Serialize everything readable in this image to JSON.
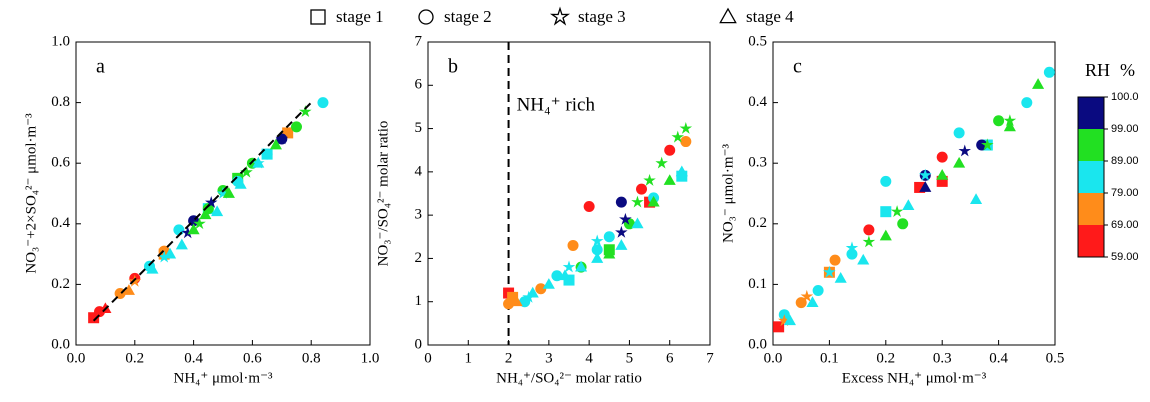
{
  "chart_data": [
    {
      "type": "scatter",
      "panel": "a",
      "xlabel": "NH₄⁺ μmol·m⁻³",
      "ylabel": "NO₃⁻+2×SO₄²⁻ μmol·m⁻³",
      "xlim": [
        0,
        1
      ],
      "ylim": [
        0,
        1
      ],
      "xticks": [
        {
          "value": 0,
          "label": "0.0"
        },
        0.2,
        0.4,
        0.6,
        0.8,
        {
          "value": 1,
          "label": "1.0"
        }
      ],
      "yticks": [
        {
          "value": 0,
          "label": "0.0"
        },
        0.2,
        0.4,
        0.6,
        0.8,
        {
          "value": 1,
          "label": "1.0"
        }
      ],
      "line_x": [
        0.06,
        0.8
      ],
      "line_y": [
        0.08,
        0.8
      ],
      "series": [
        {
          "name": "stage 1",
          "marker": "square",
          "x": [
            0.06,
            0.3,
            0.45,
            0.55,
            0.65,
            0.72
          ],
          "values": [
            0.09,
            0.3,
            0.45,
            0.55,
            0.63,
            0.7
          ],
          "rh": [
            62,
            70,
            82,
            92,
            85,
            75
          ]
        },
        {
          "name": "stage 2",
          "marker": "circle",
          "x": [
            0.08,
            0.15,
            0.2,
            0.25,
            0.3,
            0.35,
            0.4,
            0.45,
            0.5,
            0.55,
            0.6,
            0.65,
            0.7,
            0.75,
            0.84
          ],
          "values": [
            0.11,
            0.17,
            0.22,
            0.26,
            0.31,
            0.38,
            0.41,
            0.45,
            0.51,
            0.54,
            0.6,
            0.63,
            0.68,
            0.72,
            0.8
          ],
          "rh": [
            60,
            72,
            65,
            80,
            75,
            85,
            99.5,
            92,
            95,
            82,
            90,
            85,
            99.5,
            92,
            82
          ]
        },
        {
          "name": "stage 3",
          "marker": "star",
          "x": [
            0.2,
            0.3,
            0.38,
            0.42,
            0.46,
            0.5,
            0.58,
            0.62,
            0.7,
            0.78
          ],
          "values": [
            0.21,
            0.29,
            0.37,
            0.4,
            0.47,
            0.5,
            0.57,
            0.6,
            0.68,
            0.77
          ],
          "rh": [
            70,
            82,
            99.5,
            92,
            99.5,
            85,
            92,
            82,
            99.5,
            92
          ]
        },
        {
          "name": "stage 4",
          "marker": "triangle",
          "x": [
            0.1,
            0.18,
            0.26,
            0.32,
            0.36,
            0.4,
            0.44,
            0.48,
            0.52,
            0.56,
            0.62,
            0.68
          ],
          "values": [
            0.12,
            0.18,
            0.25,
            0.3,
            0.33,
            0.38,
            0.43,
            0.44,
            0.5,
            0.53,
            0.6,
            0.66
          ],
          "rh": [
            62,
            72,
            82,
            85,
            82,
            92,
            92,
            85,
            92,
            82,
            82,
            92
          ]
        }
      ]
    },
    {
      "type": "scatter",
      "panel": "b",
      "xlabel": "NH₄⁺/SO₄²⁻ molar ratio",
      "ylabel": "NO₃⁻/SO₄²⁻ molar ratio",
      "annotation": "NH₄⁺ rich",
      "vline": 2,
      "xlim": [
        0,
        7
      ],
      "ylim": [
        0,
        7
      ],
      "xticks": [
        0,
        1,
        2,
        3,
        4,
        5,
        6,
        7
      ],
      "yticks": [
        0,
        1,
        2,
        3,
        4,
        5,
        6,
        7
      ],
      "series": [
        {
          "name": "stage 1",
          "marker": "square",
          "x": [
            2,
            2.1,
            3.5,
            4.5,
            5.5,
            6.3
          ],
          "values": [
            1.2,
            1.1,
            1.5,
            2.2,
            3.3,
            3.9
          ],
          "rh": [
            62,
            70,
            82,
            92,
            62,
            82
          ]
        },
        {
          "name": "stage 2",
          "marker": "circle",
          "x": [
            2,
            2.4,
            2.8,
            3.2,
            3.6,
            3.8,
            4,
            4.2,
            4.5,
            4.8,
            5,
            5.3,
            5.6,
            6,
            6.4
          ],
          "values": [
            0.95,
            1,
            1.3,
            1.6,
            2.3,
            1.8,
            3.2,
            2.2,
            2.5,
            3.3,
            2.8,
            3.6,
            3.4,
            4.5,
            4.7
          ],
          "rh": [
            72,
            82,
            75,
            85,
            70,
            92,
            62,
            85,
            82,
            99.5,
            92,
            62,
            82,
            62,
            75
          ]
        },
        {
          "name": "stage 3",
          "marker": "star",
          "x": [
            2.5,
            3.5,
            4.2,
            4.8,
            4.9,
            5.2,
            5.5,
            5.8,
            6.2,
            6.4
          ],
          "values": [
            1.1,
            1.8,
            2.4,
            2.6,
            2.9,
            3.3,
            3.8,
            4.2,
            4.8,
            5
          ],
          "rh": [
            82,
            85,
            82,
            99.5,
            99.5,
            92,
            92,
            92,
            92,
            92
          ]
        },
        {
          "name": "stage 4",
          "marker": "triangle",
          "x": [
            2.2,
            2.6,
            3,
            3.4,
            3.8,
            4.2,
            4.5,
            4.8,
            5.2,
            5.6,
            6,
            6.3
          ],
          "values": [
            1,
            1.2,
            1.4,
            1.6,
            1.8,
            2,
            2.1,
            2.3,
            2.8,
            3.3,
            3.8,
            4
          ],
          "rh": [
            72,
            82,
            82,
            85,
            82,
            82,
            92,
            85,
            82,
            92,
            92,
            85
          ]
        }
      ]
    },
    {
      "type": "scatter",
      "panel": "c",
      "xlabel": "Excess NH₄⁺ μmol·m⁻³",
      "ylabel": "NO₃⁻ μmol·m⁻³",
      "xlim": [
        0,
        0.5
      ],
      "ylim": [
        0,
        0.5
      ],
      "xticks": [
        {
          "value": 0,
          "label": "0.0"
        },
        0.1,
        0.2,
        0.3,
        0.4,
        0.5
      ],
      "yticks": [
        {
          "value": 0,
          "label": "0.0"
        },
        0.1,
        0.2,
        0.3,
        0.4,
        0.5
      ],
      "series": [
        {
          "name": "stage 1",
          "marker": "square",
          "x": [
            0.01,
            0.1,
            0.2,
            0.26,
            0.3,
            0.38
          ],
          "values": [
            0.03,
            0.12,
            0.22,
            0.26,
            0.27,
            0.33
          ],
          "rh": [
            62,
            72,
            85,
            62,
            65,
            82
          ]
        },
        {
          "name": "stage 2",
          "marker": "circle",
          "x": [
            0.02,
            0.05,
            0.08,
            0.11,
            0.14,
            0.17,
            0.2,
            0.23,
            0.27,
            0.3,
            0.33,
            0.37,
            0.4,
            0.45,
            0.49
          ],
          "values": [
            0.05,
            0.07,
            0.09,
            0.14,
            0.15,
            0.19,
            0.27,
            0.2,
            0.28,
            0.31,
            0.35,
            0.33,
            0.37,
            0.4,
            0.45
          ],
          "rh": [
            82,
            70,
            82,
            75,
            85,
            62,
            82,
            92,
            99.5,
            62,
            82,
            99.5,
            92,
            82,
            82
          ]
        },
        {
          "name": "stage 3",
          "marker": "star",
          "x": [
            0.02,
            0.06,
            0.1,
            0.14,
            0.17,
            0.22,
            0.27,
            0.34,
            0.38,
            0.42
          ],
          "values": [
            0.04,
            0.08,
            0.12,
            0.16,
            0.17,
            0.22,
            0.28,
            0.32,
            0.33,
            0.37
          ],
          "rh": [
            70,
            75,
            82,
            85,
            92,
            92,
            82,
            99.5,
            92,
            92
          ]
        },
        {
          "name": "stage 4",
          "marker": "triangle",
          "x": [
            0.03,
            0.07,
            0.12,
            0.16,
            0.2,
            0.24,
            0.27,
            0.3,
            0.33,
            0.36,
            0.42,
            0.47
          ],
          "values": [
            0.04,
            0.07,
            0.11,
            0.14,
            0.18,
            0.23,
            0.26,
            0.28,
            0.3,
            0.24,
            0.36,
            0.43
          ],
          "rh": [
            82,
            82,
            85,
            82,
            92,
            82,
            99.5,
            92,
            92,
            82,
            92,
            92
          ]
        }
      ]
    }
  ],
  "colorbar": {
    "title": "RH",
    "unit": "%",
    "ticks": [
      {
        "value": 59,
        "label": "59.00"
      },
      {
        "value": 69,
        "label": "69.00"
      },
      {
        "value": 79,
        "label": "79.00"
      },
      {
        "value": 89,
        "label": "89.00"
      },
      {
        "value": 99,
        "label": "99.00"
      },
      {
        "value": 100,
        "label": "100.0"
      }
    ],
    "colors": [
      "#ff1a1a",
      "#ff8c1a",
      "#1ae6ee",
      "#22e022",
      "#0a0a80"
    ]
  }
}
